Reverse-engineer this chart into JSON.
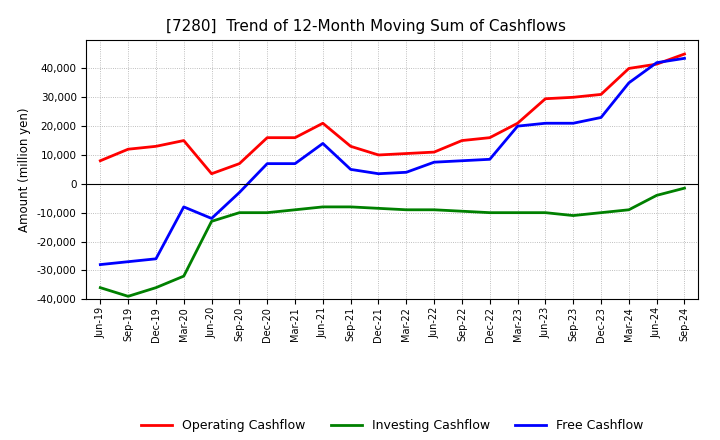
{
  "title": "[7280]  Trend of 12-Month Moving Sum of Cashflows",
  "ylabel": "Amount (million yen)",
  "background_color": "#ffffff",
  "grid_color": "#aaaaaa",
  "xlim_labels": [
    "Jun-19",
    "Sep-19",
    "Dec-19",
    "Mar-20",
    "Jun-20",
    "Sep-20",
    "Dec-20",
    "Mar-21",
    "Jun-21",
    "Sep-21",
    "Dec-21",
    "Mar-22",
    "Jun-22",
    "Sep-22",
    "Dec-22",
    "Mar-23",
    "Jun-23",
    "Sep-23",
    "Dec-23",
    "Mar-24",
    "Jun-24",
    "Sep-24"
  ],
  "ylim": [
    -40000,
    50000
  ],
  "yticks": [
    -40000,
    -30000,
    -20000,
    -10000,
    0,
    10000,
    20000,
    30000,
    40000
  ],
  "operating": [
    8000,
    12000,
    13000,
    15000,
    3500,
    7000,
    16000,
    16000,
    21000,
    13000,
    10000,
    10500,
    11000,
    15000,
    16000,
    21000,
    29500,
    30000,
    31000,
    40000,
    41500,
    45000
  ],
  "investing": [
    -36000,
    -39000,
    -36000,
    -32000,
    -13000,
    -10000,
    -10000,
    -9000,
    -8000,
    -8000,
    -8500,
    -9000,
    -9000,
    -9500,
    -10000,
    -10000,
    -10000,
    -11000,
    -10000,
    -9000,
    -4000,
    -1500
  ],
  "free": [
    -28000,
    -27000,
    -26000,
    -8000,
    -12000,
    -3000,
    7000,
    7000,
    14000,
    5000,
    3500,
    4000,
    7500,
    8000,
    8500,
    20000,
    21000,
    21000,
    23000,
    35000,
    42000,
    43500
  ],
  "operating_color": "#ff0000",
  "investing_color": "#008000",
  "free_color": "#0000ff",
  "line_width": 2.0,
  "legend_labels": [
    "Operating Cashflow",
    "Investing Cashflow",
    "Free Cashflow"
  ]
}
